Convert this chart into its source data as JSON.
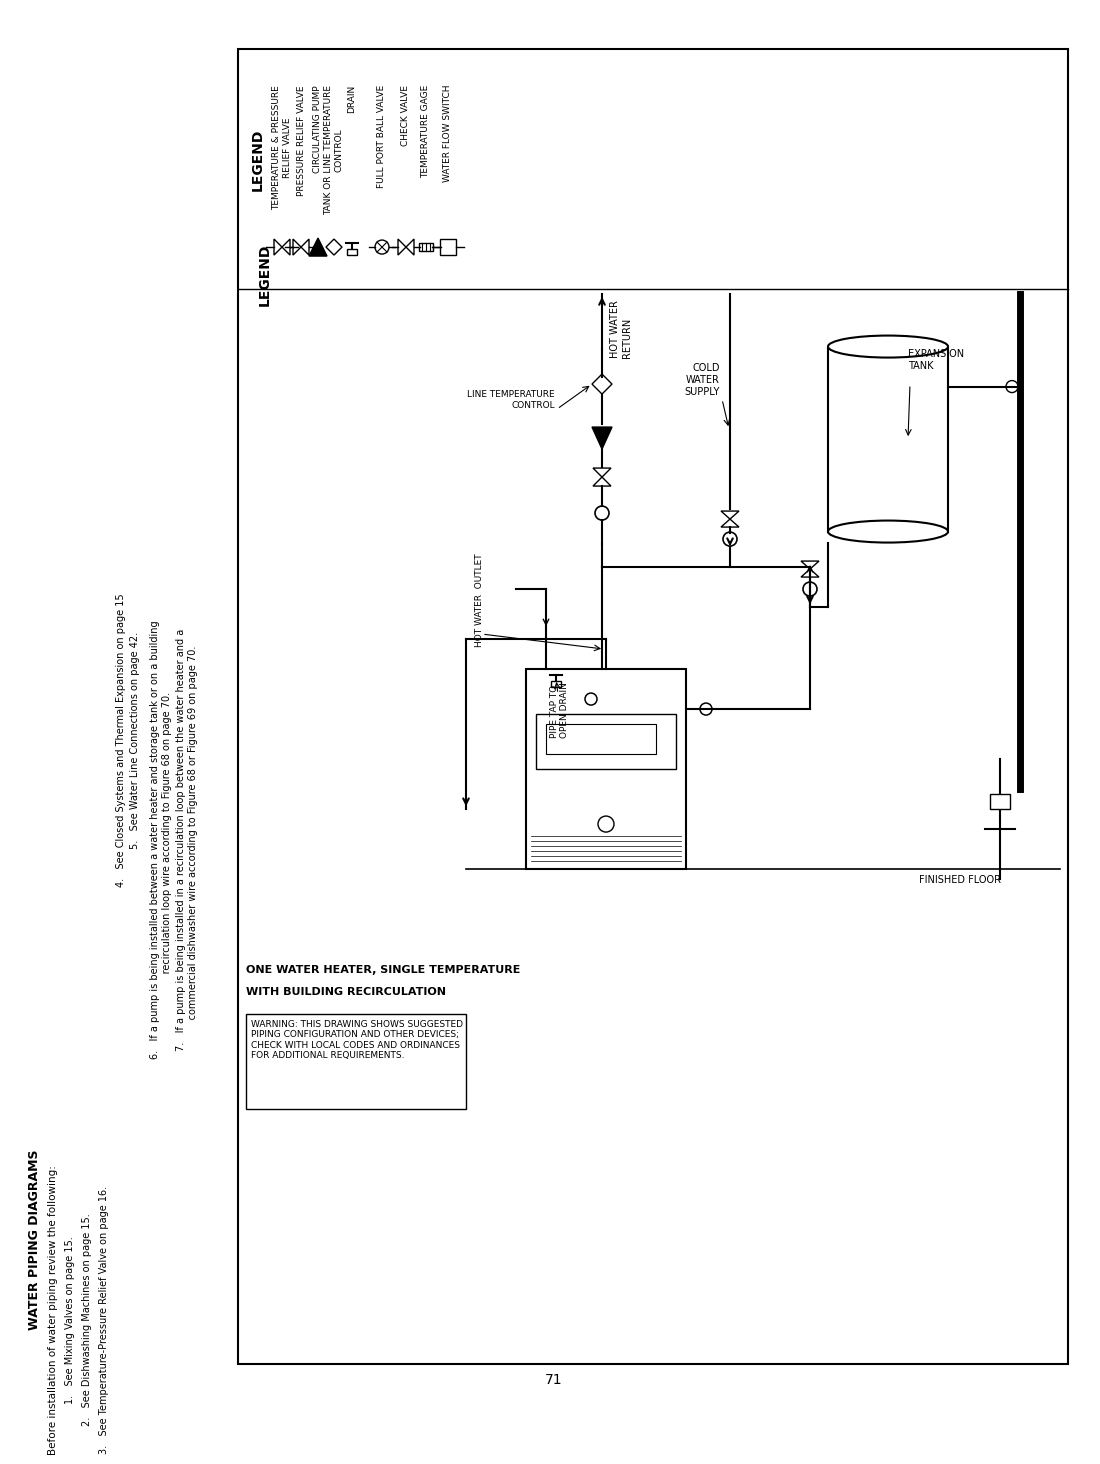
{
  "page_bg": "#ffffff",
  "title": "WATER PIPING DIAGRAMS",
  "subtitle_line1": "ONE WATER HEATER, SINGLE TEMPERATURE",
  "subtitle_line2": "WITH BUILDING RECIRCULATION",
  "warning_text": "WARNING: THIS DRAWING SHOWS SUGGESTED\nPIPING CONFIGURATION AND OTHER DEVICES;\nCHECK WITH LOCAL CODES AND ORDINANCES\nFOR ADDITIONAL REQUIREMENTS.",
  "page_number": "71",
  "left_items": [
    "Before installation of water piping review the following:",
    "1.   See Mixing Valves on page 15.",
    "2.   See Dishwashing Machines on page 15.",
    "3.   See Temperature-Pressure Relief Valve on page 16.",
    "4.   See Closed Systems and Thermal Expansion on page 15",
    "5.   See Water Line Connections on page 42.",
    "6.   If a pump is being installed between a water heater and storage tank or on a building",
    "     recirculation loop wire according to Figure 68 on page 70.",
    "7.   If a pump is being installed in a recirculation loop between the water heater and a",
    "     commercial dishwasher wire according to Figure 68 or Figure 69 on page 70."
  ],
  "legend_left": [
    {
      "label": "TEMPERATURE & PRESSURE\nRELIEF VALVE"
    },
    {
      "label": "PRESSURE RELIEF VALVE"
    },
    {
      "label": "CIRCULATING PUMP"
    },
    {
      "label": "TANK OR LINE TEMPERATURE\nCONTROL"
    },
    {
      "label": "DRAIN"
    }
  ],
  "legend_right": [
    {
      "label": "FULL PORT BALL VALVE"
    },
    {
      "label": "CHECK VALVE"
    },
    {
      "label": "TEMPERATURE GAGE"
    },
    {
      "label": "WATER FLOW SWITCH"
    }
  ]
}
